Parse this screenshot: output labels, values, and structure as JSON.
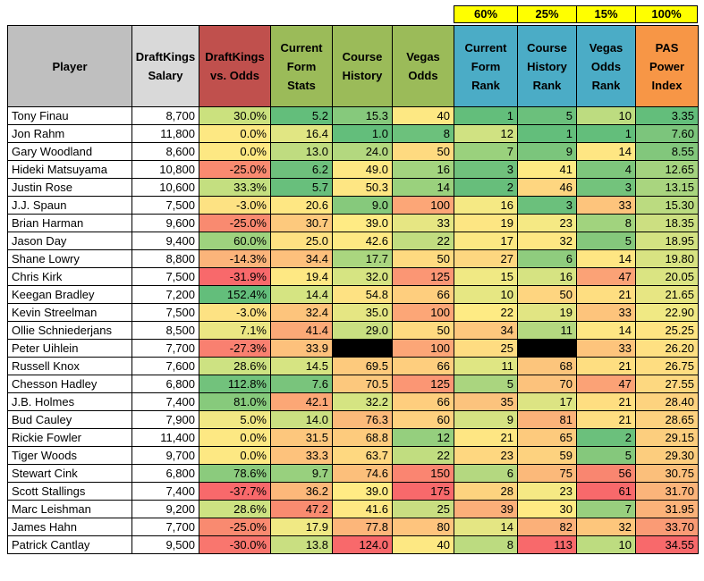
{
  "weights": [
    "60%",
    "25%",
    "15%",
    "100%"
  ],
  "headers": [
    "Player",
    "DraftKings Salary",
    "DraftKings vs. Odds",
    "Current Form Stats",
    "Course History",
    "Vegas Odds",
    "Current Form Rank",
    "Course History Rank",
    "Vegas Odds Rank",
    "PAS Power Index"
  ],
  "header_colors": [
    "#bfbfbf",
    "#d9d9d9",
    "#c0504d",
    "#9bbb59",
    "#9bbb59",
    "#9bbb59",
    "#4bacc6",
    "#4bacc6",
    "#4bacc6",
    "#f79646"
  ],
  "rows": [
    {
      "player": "Tony Finau",
      "salary": "8,700",
      "vs_odds": "30.0%",
      "form": "5.2",
      "history": "15.3",
      "odds": "40",
      "form_rank": "1",
      "history_rank": "5",
      "odds_rank": "10",
      "pas": "3.35",
      "colors": [
        "#cbe17e",
        "#63be7b",
        "#86c97c",
        "#fde883",
        "#63be7b",
        "#6bc07c",
        "#bddc80",
        "#63be7b"
      ]
    },
    {
      "player": "Jon Rahm",
      "salary": "11,800",
      "vs_odds": "0.0%",
      "form": "16.4",
      "history": "1.0",
      "odds": "8",
      "form_rank": "12",
      "history_rank": "1",
      "odds_rank": "1",
      "pas": "7.60",
      "colors": [
        "#fde883",
        "#e1e683",
        "#63be7b",
        "#6cc17c",
        "#d0e282",
        "#63be7b",
        "#63be7b",
        "#7cc57c"
      ]
    },
    {
      "player": "Gary Woodland",
      "salary": "8,600",
      "vs_odds": "0.0%",
      "form": "13.0",
      "history": "24.0",
      "odds": "50",
      "form_rank": "7",
      "history_rank": "9",
      "odds_rank": "14",
      "pas": "8.55",
      "colors": [
        "#fde883",
        "#bfdc80",
        "#b3d87f",
        "#feda80",
        "#9ad17d",
        "#7bc57c",
        "#fee683",
        "#82c77c"
      ]
    },
    {
      "player": "Hideki Matsuyama",
      "salary": "10,800",
      "vs_odds": "-25.0%",
      "form": "6.2",
      "history": "49.0",
      "odds": "16",
      "form_rank": "3",
      "history_rank": "41",
      "odds_rank": "4",
      "pas": "12.65",
      "colors": [
        "#f98a70",
        "#6ec07c",
        "#fee883",
        "#a3d47f",
        "#70c17c",
        "#feea83",
        "#7ec67c",
        "#a4d37f"
      ]
    },
    {
      "player": "Justin Rose",
      "salary": "10,600",
      "vs_odds": "33.3%",
      "form": "5.7",
      "history": "50.3",
      "odds": "14",
      "form_rank": "2",
      "history_rank": "46",
      "odds_rank": "3",
      "pas": "13.15",
      "colors": [
        "#c4df80",
        "#68bf7c",
        "#fee683",
        "#9ad17d",
        "#67be7b",
        "#fed680",
        "#73c37c",
        "#a9d57f"
      ]
    },
    {
      "player": "J.J. Spaun",
      "salary": "7,500",
      "vs_odds": "-3.0%",
      "form": "20.6",
      "history": "9.0",
      "odds": "100",
      "form_rank": "16",
      "history_rank": "3",
      "odds_rank": "33",
      "pas": "15.30",
      "colors": [
        "#fde283",
        "#fee783",
        "#86c97c",
        "#fca677",
        "#f5e984",
        "#6bc07c",
        "#fdc47c",
        "#bbdb80"
      ]
    },
    {
      "player": "Brian Harman",
      "salary": "9,600",
      "vs_odds": "-25.0%",
      "form": "30.7",
      "history": "39.0",
      "odds": "33",
      "form_rank": "19",
      "history_rank": "23",
      "odds_rank": "8",
      "pas": "18.35",
      "colors": [
        "#f98a70",
        "#fdc97d",
        "#ffeb84",
        "#e6e683",
        "#fde683",
        "#f5e984",
        "#a1d37e",
        "#ccdf81"
      ]
    },
    {
      "player": "Jason Day",
      "salary": "9,400",
      "vs_odds": "60.0%",
      "form": "25.0",
      "history": "42.6",
      "odds": "22",
      "form_rank": "17",
      "history_rank": "32",
      "odds_rank": "5",
      "pas": "18.95",
      "colors": [
        "#9ed27e",
        "#fee182",
        "#fee983",
        "#c1dd80",
        "#fce883",
        "#fee783",
        "#85c87c",
        "#d3e282"
      ]
    },
    {
      "player": "Shane Lowry",
      "salary": "8,800",
      "vs_odds": "-14.3%",
      "form": "34.4",
      "history": "17.7",
      "odds": "50",
      "form_rank": "27",
      "history_rank": "6",
      "odds_rank": "14",
      "pas": "19.80",
      "colors": [
        "#fbb47a",
        "#fdc07c",
        "#aad67f",
        "#feda80",
        "#fdd780",
        "#8fcc7e",
        "#fee683",
        "#d8e382"
      ]
    },
    {
      "player": "Chris Kirk",
      "salary": "7,500",
      "vs_odds": "-31.9%",
      "form": "19.4",
      "history": "32.0",
      "odds": "125",
      "form_rank": "15",
      "history_rank": "16",
      "odds_rank": "47",
      "pas": "20.05",
      "colors": [
        "#f8696b",
        "#fee883",
        "#d6e482",
        "#fb9674",
        "#f0e984",
        "#d6e382",
        "#fba276",
        "#dae482"
      ]
    },
    {
      "player": "Keegan Bradley",
      "salary": "7,200",
      "vs_odds": "152.4%",
      "form": "14.4",
      "history": "54.8",
      "odds": "66",
      "form_rank": "10",
      "history_rank": "50",
      "odds_rank": "21",
      "pas": "21.65",
      "colors": [
        "#63be7b",
        "#d5e482",
        "#fee283",
        "#fece7e",
        "#e6e783",
        "#fed580",
        "#fede81",
        "#e7e683"
      ]
    },
    {
      "player": "Kevin Streelman",
      "salary": "7,500",
      "vs_odds": "-3.0%",
      "form": "32.4",
      "history": "35.0",
      "odds": "100",
      "form_rank": "22",
      "history_rank": "19",
      "odds_rank": "33",
      "pas": "22.90",
      "colors": [
        "#fde283",
        "#fdc47c",
        "#e5e683",
        "#fca677",
        "#feeb84",
        "#e1e583",
        "#fdc47c",
        "#f0e984"
      ]
    },
    {
      "player": "Ollie Schniederjans",
      "salary": "8,500",
      "vs_odds": "7.1%",
      "form": "41.4",
      "history": "29.0",
      "odds": "50",
      "form_rank": "34",
      "history_rank": "11",
      "odds_rank": "14",
      "pas": "25.25",
      "colors": [
        "#ebe683",
        "#fba977",
        "#c9df81",
        "#feda80",
        "#fdc77d",
        "#b4d880",
        "#fee683",
        "#fee482"
      ]
    },
    {
      "player": "Peter Uihlein",
      "salary": "7,700",
      "vs_odds": "-27.3%",
      "form": "33.9",
      "history": "",
      "odds": "100",
      "form_rank": "25",
      "history_rank": "",
      "odds_rank": "33",
      "pas": "26.20",
      "colors": [
        "#f98070",
        "#fdc17c",
        "#000000",
        "#fca677",
        "#fedc81",
        "#000000",
        "#fdc47c",
        "#fee082"
      ]
    },
    {
      "player": "Russell Knox",
      "salary": "7,600",
      "vs_odds": "28.6%",
      "form": "14.5",
      "history": "69.5",
      "odds": "66",
      "form_rank": "11",
      "history_rank": "68",
      "odds_rank": "21",
      "pas": "26.75",
      "colors": [
        "#cde282",
        "#d6e482",
        "#fdca7d",
        "#fece7e",
        "#dfe683",
        "#fcc57c",
        "#fede81",
        "#fedd81"
      ]
    },
    {
      "player": "Chesson Hadley",
      "salary": "6,800",
      "vs_odds": "112.8%",
      "form": "7.6",
      "history": "70.5",
      "odds": "125",
      "form_rank": "5",
      "history_rank": "70",
      "odds_rank": "47",
      "pas": "27.55",
      "colors": [
        "#72c27c",
        "#79c47c",
        "#fcc87d",
        "#fb9674",
        "#aad57f",
        "#fcc27c",
        "#fba276",
        "#fdd880"
      ]
    },
    {
      "player": "J.B. Holmes",
      "salary": "7,400",
      "vs_odds": "81.0%",
      "form": "42.1",
      "history": "32.2",
      "odds": "66",
      "form_rank": "35",
      "history_rank": "17",
      "odds_rank": "21",
      "pas": "28.40",
      "colors": [
        "#87ca7c",
        "#fca776",
        "#d5e482",
        "#fece7e",
        "#fcc37d",
        "#dce483",
        "#fede81",
        "#fdd37f"
      ]
    },
    {
      "player": "Bud Cauley",
      "salary": "7,900",
      "vs_odds": "5.0%",
      "form": "14.0",
      "history": "76.3",
      "odds": "60",
      "form_rank": "9",
      "history_rank": "81",
      "odds_rank": "21",
      "pas": "28.65",
      "colors": [
        "#f1e884",
        "#cbe081",
        "#fcba7a",
        "#fed17f",
        "#d5e282",
        "#fbb279",
        "#fede81",
        "#fdd17f"
      ]
    },
    {
      "player": "Rickie Fowler",
      "salary": "11,400",
      "vs_odds": "0.0%",
      "form": "31.5",
      "history": "68.8",
      "odds": "12",
      "form_rank": "21",
      "history_rank": "65",
      "odds_rank": "2",
      "pas": "29.15",
      "colors": [
        "#fde883",
        "#fdc77d",
        "#fdcb7d",
        "#95cf7e",
        "#fee683",
        "#fdca7d",
        "#6bc07c",
        "#fcce7e"
      ]
    },
    {
      "player": "Tiger Woods",
      "salary": "9,700",
      "vs_odds": "0.0%",
      "form": "33.3",
      "history": "63.7",
      "odds": "22",
      "form_rank": "23",
      "history_rank": "59",
      "odds_rank": "5",
      "pas": "29.30",
      "colors": [
        "#fde883",
        "#fdc27c",
        "#fed880",
        "#c1dd80",
        "#fed780",
        "#fdd27f",
        "#85c87c",
        "#fccd7e"
      ]
    },
    {
      "player": "Stewart Cink",
      "salary": "6,800",
      "vs_odds": "78.6%",
      "form": "9.7",
      "history": "74.6",
      "odds": "150",
      "form_rank": "6",
      "history_rank": "75",
      "odds_rank": "56",
      "pas": "30.75",
      "colors": [
        "#8bcb7d",
        "#98d07e",
        "#fcbf7b",
        "#fa8571",
        "#b4d880",
        "#fbb97a",
        "#f98670",
        "#fbbf7b"
      ]
    },
    {
      "player": "Scott Stallings",
      "salary": "7,400",
      "vs_odds": "-37.7%",
      "form": "36.2",
      "history": "39.0",
      "odds": "175",
      "form_rank": "28",
      "history_rank": "23",
      "odds_rank": "61",
      "pas": "31.70",
      "colors": [
        "#f8696b",
        "#fcb87a",
        "#ffeb84",
        "#f8696b",
        "#fdd37f",
        "#f5e984",
        "#f8696b",
        "#fbb47a"
      ]
    },
    {
      "player": "Marc Leishman",
      "salary": "9,200",
      "vs_odds": "28.6%",
      "form": "47.2",
      "history": "41.6",
      "odds": "25",
      "form_rank": "39",
      "history_rank": "30",
      "odds_rank": "7",
      "pas": "31.95",
      "colors": [
        "#cde282",
        "#f98b70",
        "#fee883",
        "#c9de81",
        "#fbaf79",
        "#ffea83",
        "#98cf7e",
        "#fbb279"
      ]
    },
    {
      "player": "James Hahn",
      "salary": "7,700",
      "vs_odds": "-25.0%",
      "form": "17.9",
      "history": "77.8",
      "odds": "80",
      "form_rank": "14",
      "history_rank": "82",
      "odds_rank": "32",
      "pas": "33.70",
      "colors": [
        "#f98a70",
        "#f0e984",
        "#fcb67a",
        "#fec47d",
        "#e4e683",
        "#fbb079",
        "#fdc67c",
        "#fa9b75"
      ]
    },
    {
      "player": "Patrick Cantlay",
      "salary": "9,500",
      "vs_odds": "-30.0%",
      "form": "13.8",
      "history": "124.0",
      "odds": "40",
      "form_rank": "8",
      "history_rank": "113",
      "odds_rank": "10",
      "pas": "34.55",
      "colors": [
        "#f9766e",
        "#c9df81",
        "#f8696b",
        "#fde883",
        "#bcdb80",
        "#f8696b",
        "#bddc80",
        "#f8696b"
      ]
    }
  ]
}
